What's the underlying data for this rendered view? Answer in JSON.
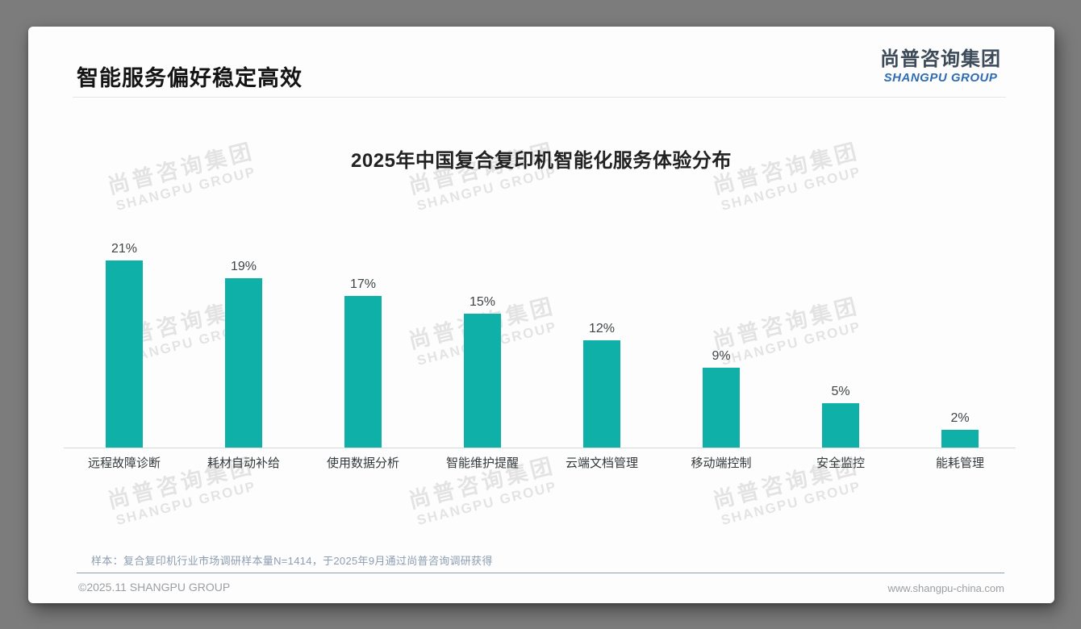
{
  "slide": {
    "header_title": "智能服务偏好稳定高效",
    "logo": {
      "name_cn": "尚普咨询集团",
      "name_en": "SHANGPU GROUP"
    },
    "watermark": {
      "line1": "尚普咨询集团",
      "line2": "SHANGPU GROUP"
    },
    "source_note": "样本：复合复印机行业市场调研样本量N=1414，于2025年9月通过尚普咨询调研获得",
    "footer": {
      "copyright": "©2025.11 SHANGPU GROUP",
      "website": "www.shangpu-china.com"
    }
  },
  "chart_data": {
    "type": "bar",
    "title": "2025年中国复合复印机智能化服务体验分布",
    "categories": [
      "远程故障诊断",
      "耗材自动补给",
      "使用数据分析",
      "智能维护提醒",
      "云端文档管理",
      "移动端控制",
      "安全监控",
      "能耗管理"
    ],
    "values": [
      21,
      19,
      17,
      15,
      12,
      9,
      5,
      2
    ],
    "data_labels": [
      "21%",
      "19%",
      "17%",
      "15%",
      "12%",
      "9%",
      "5%",
      "2%"
    ],
    "unit": "%",
    "ylim": [
      0,
      22
    ],
    "grid": false,
    "legend": "none",
    "bar_color": "#0fb0a8",
    "axis_line_color": "#d8d8d8"
  },
  "colors": {
    "accent_teal": "#0fb0a8",
    "logo_blue": "#2e6cb3",
    "note_blue_gray": "#8d9db1",
    "page_background": "#7c7c7c"
  }
}
